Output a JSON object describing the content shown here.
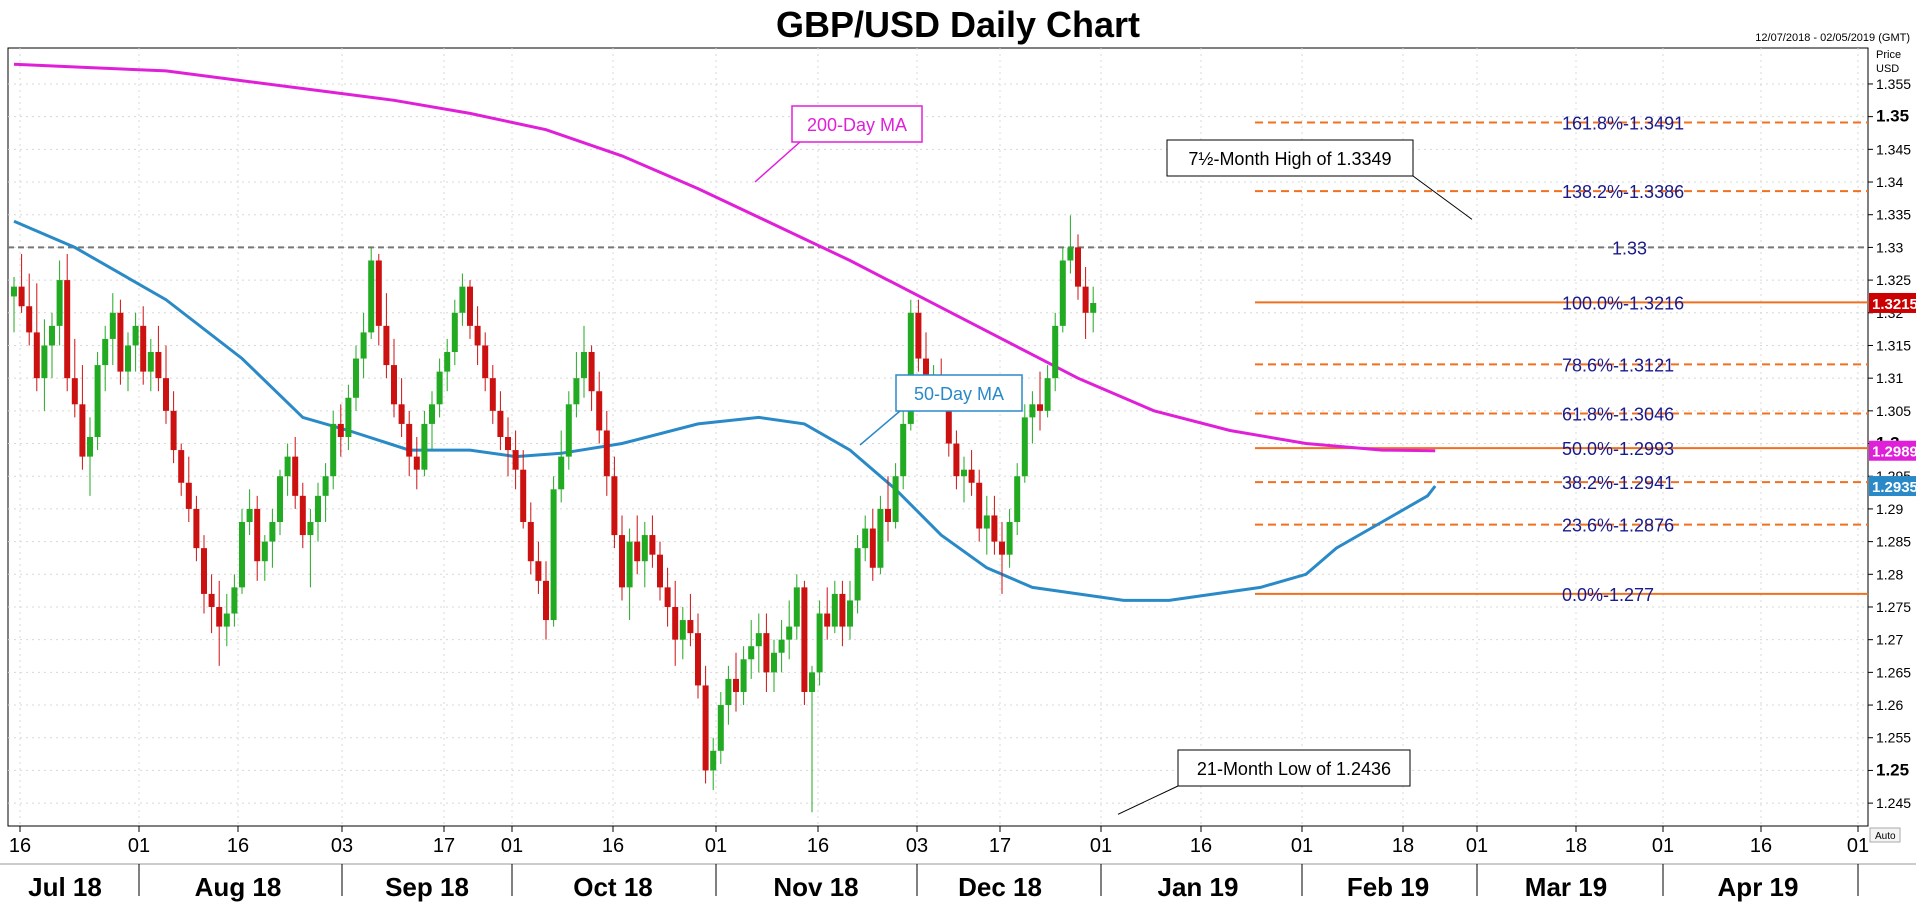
{
  "header": {
    "title": "GBP/USD Daily Chart",
    "date_range": "12/07/2018 - 02/05/2019 (GMT)",
    "axis_caption_1": "Price",
    "axis_caption_2": "USD",
    "auto_label": "Auto"
  },
  "colors": {
    "bull": "#22aa22",
    "bear": "#cc1111",
    "ma50": "#2a8ac8",
    "ma200": "#e020d8",
    "fib": "#f07020",
    "fib_text": "#1a1a8c",
    "dashed_level": "#777777",
    "price_box": "#cc0000"
  },
  "chart_data": {
    "type": "candlestick",
    "title": "GBP/USD Daily Chart",
    "ylim": [
      1.2415,
      1.3605
    ],
    "y_ticks": [
      {
        "value": 1.245,
        "label": "1.245",
        "bold": false
      },
      {
        "value": 1.25,
        "label": "1.25",
        "bold": true
      },
      {
        "value": 1.255,
        "label": "1.255",
        "bold": false
      },
      {
        "value": 1.26,
        "label": "1.26",
        "bold": false
      },
      {
        "value": 1.265,
        "label": "1.265",
        "bold": false
      },
      {
        "value": 1.27,
        "label": "1.27",
        "bold": false
      },
      {
        "value": 1.275,
        "label": "1.275",
        "bold": false
      },
      {
        "value": 1.28,
        "label": "1.28",
        "bold": false
      },
      {
        "value": 1.285,
        "label": "1.285",
        "bold": false
      },
      {
        "value": 1.29,
        "label": "1.29",
        "bold": false
      },
      {
        "value": 1.295,
        "label": "1.295",
        "bold": false
      },
      {
        "value": 1.3,
        "label": "1.3",
        "bold": true
      },
      {
        "value": 1.305,
        "label": "1.305",
        "bold": false
      },
      {
        "value": 1.31,
        "label": "1.31",
        "bold": false
      },
      {
        "value": 1.315,
        "label": "1.315",
        "bold": false
      },
      {
        "value": 1.32,
        "label": "1.32",
        "bold": false
      },
      {
        "value": 1.325,
        "label": "1.325",
        "bold": false
      },
      {
        "value": 1.33,
        "label": "1.33",
        "bold": false
      },
      {
        "value": 1.335,
        "label": "1.335",
        "bold": false
      },
      {
        "value": 1.34,
        "label": "1.34",
        "bold": false
      },
      {
        "value": 1.345,
        "label": "1.345",
        "bold": false
      },
      {
        "value": 1.35,
        "label": "1.35",
        "bold": true
      },
      {
        "value": 1.355,
        "label": "1.355",
        "bold": false
      }
    ],
    "x_day_ticks": [
      "16",
      "01",
      "16",
      "03",
      "17",
      "01",
      "16",
      "01",
      "16",
      "03",
      "17",
      "01",
      "16",
      "01",
      "18",
      "01",
      "18",
      "01",
      "16",
      "01"
    ],
    "x_month_labels": [
      "Jul 18",
      "Aug 18",
      "Sep 18",
      "Oct 18",
      "Nov 18",
      "Dec 18",
      "Jan 19",
      "Feb 19",
      "Mar 19",
      "Apr 19"
    ],
    "candles": [
      [
        1.3225,
        1.3255,
        1.317,
        1.324
      ],
      [
        1.324,
        1.329,
        1.32,
        1.321
      ],
      [
        1.321,
        1.326,
        1.315,
        1.317
      ],
      [
        1.317,
        1.3245,
        1.308,
        1.31
      ],
      [
        1.31,
        1.319,
        1.305,
        1.315
      ],
      [
        1.315,
        1.32,
        1.31,
        1.318
      ],
      [
        1.318,
        1.328,
        1.315,
        1.325
      ],
      [
        1.325,
        1.329,
        1.308,
        1.31
      ],
      [
        1.31,
        1.316,
        1.304,
        1.306
      ],
      [
        1.306,
        1.312,
        1.296,
        1.298
      ],
      [
        1.298,
        1.304,
        1.292,
        1.301
      ],
      [
        1.301,
        1.314,
        1.299,
        1.312
      ],
      [
        1.312,
        1.318,
        1.308,
        1.316
      ],
      [
        1.316,
        1.323,
        1.312,
        1.32
      ],
      [
        1.32,
        1.322,
        1.309,
        1.311
      ],
      [
        1.311,
        1.317,
        1.308,
        1.315
      ],
      [
        1.315,
        1.32,
        1.311,
        1.318
      ],
      [
        1.318,
        1.321,
        1.309,
        1.311
      ],
      [
        1.311,
        1.316,
        1.308,
        1.314
      ],
      [
        1.314,
        1.318,
        1.308,
        1.31
      ],
      [
        1.31,
        1.315,
        1.303,
        1.305
      ],
      [
        1.305,
        1.308,
        1.297,
        1.299
      ],
      [
        1.299,
        1.3,
        1.292,
        1.294
      ],
      [
        1.294,
        1.298,
        1.288,
        1.29
      ],
      [
        1.29,
        1.292,
        1.282,
        1.284
      ],
      [
        1.284,
        1.286,
        1.274,
        1.277
      ],
      [
        1.277,
        1.28,
        1.271,
        1.275
      ],
      [
        1.275,
        1.279,
        1.266,
        1.272
      ],
      [
        1.272,
        1.277,
        1.269,
        1.274
      ],
      [
        1.274,
        1.28,
        1.272,
        1.278
      ],
      [
        1.278,
        1.29,
        1.277,
        1.288
      ],
      [
        1.288,
        1.293,
        1.286,
        1.29
      ],
      [
        1.29,
        1.292,
        1.279,
        1.282
      ],
      [
        1.282,
        1.286,
        1.279,
        1.285
      ],
      [
        1.285,
        1.29,
        1.281,
        1.288
      ],
      [
        1.288,
        1.296,
        1.286,
        1.295
      ],
      [
        1.295,
        1.3,
        1.292,
        1.298
      ],
      [
        1.298,
        1.301,
        1.29,
        1.292
      ],
      [
        1.292,
        1.294,
        1.284,
        1.286
      ],
      [
        1.286,
        1.29,
        1.278,
        1.288
      ],
      [
        1.288,
        1.294,
        1.285,
        1.292
      ],
      [
        1.292,
        1.297,
        1.288,
        1.295
      ],
      [
        1.295,
        1.305,
        1.293,
        1.303
      ],
      [
        1.303,
        1.306,
        1.298,
        1.301
      ],
      [
        1.301,
        1.309,
        1.299,
        1.307
      ],
      [
        1.307,
        1.315,
        1.305,
        1.313
      ],
      [
        1.313,
        1.32,
        1.31,
        1.317
      ],
      [
        1.317,
        1.33,
        1.316,
        1.328
      ],
      [
        1.328,
        1.329,
        1.315,
        1.318
      ],
      [
        1.318,
        1.323,
        1.31,
        1.312
      ],
      [
        1.312,
        1.316,
        1.304,
        1.306
      ],
      [
        1.306,
        1.31,
        1.301,
        1.303
      ],
      [
        1.303,
        1.305,
        1.295,
        1.298
      ],
      [
        1.298,
        1.301,
        1.293,
        1.296
      ],
      [
        1.296,
        1.305,
        1.295,
        1.303
      ],
      [
        1.303,
        1.308,
        1.299,
        1.306
      ],
      [
        1.306,
        1.313,
        1.304,
        1.311
      ],
      [
        1.311,
        1.316,
        1.308,
        1.314
      ],
      [
        1.314,
        1.322,
        1.312,
        1.32
      ],
      [
        1.32,
        1.326,
        1.318,
        1.324
      ],
      [
        1.324,
        1.325,
        1.316,
        1.318
      ],
      [
        1.318,
        1.321,
        1.312,
        1.315
      ],
      [
        1.315,
        1.317,
        1.308,
        1.31
      ],
      [
        1.31,
        1.312,
        1.303,
        1.305
      ],
      [
        1.305,
        1.308,
        1.299,
        1.301
      ],
      [
        1.301,
        1.304,
        1.295,
        1.299
      ],
      [
        1.299,
        1.302,
        1.293,
        1.296
      ],
      [
        1.296,
        1.299,
        1.287,
        1.288
      ],
      [
        1.288,
        1.291,
        1.28,
        1.282
      ],
      [
        1.282,
        1.285,
        1.277,
        1.279
      ],
      [
        1.279,
        1.282,
        1.27,
        1.273
      ],
      [
        1.273,
        1.295,
        1.272,
        1.293
      ],
      [
        1.293,
        1.302,
        1.291,
        1.298
      ],
      [
        1.298,
        1.308,
        1.296,
        1.306
      ],
      [
        1.306,
        1.314,
        1.304,
        1.31
      ],
      [
        1.31,
        1.318,
        1.307,
        1.314
      ],
      [
        1.314,
        1.315,
        1.305,
        1.308
      ],
      [
        1.308,
        1.311,
        1.3,
        1.302
      ],
      [
        1.302,
        1.305,
        1.292,
        1.295
      ],
      [
        1.295,
        1.298,
        1.284,
        1.286
      ],
      [
        1.286,
        1.289,
        1.276,
        1.278
      ],
      [
        1.278,
        1.287,
        1.273,
        1.285
      ],
      [
        1.285,
        1.289,
        1.28,
        1.282
      ],
      [
        1.282,
        1.288,
        1.278,
        1.286
      ],
      [
        1.286,
        1.289,
        1.281,
        1.283
      ],
      [
        1.283,
        1.285,
        1.276,
        1.278
      ],
      [
        1.278,
        1.281,
        1.272,
        1.275
      ],
      [
        1.275,
        1.279,
        1.266,
        1.27
      ],
      [
        1.27,
        1.275,
        1.267,
        1.273
      ],
      [
        1.273,
        1.277,
        1.269,
        1.271
      ],
      [
        1.271,
        1.274,
        1.261,
        1.263
      ],
      [
        1.263,
        1.266,
        1.248,
        1.25
      ],
      [
        1.25,
        1.255,
        1.247,
        1.253
      ],
      [
        1.253,
        1.262,
        1.251,
        1.26
      ],
      [
        1.26,
        1.266,
        1.257,
        1.264
      ],
      [
        1.264,
        1.268,
        1.259,
        1.262
      ],
      [
        1.262,
        1.269,
        1.26,
        1.267
      ],
      [
        1.267,
        1.273,
        1.264,
        1.269
      ],
      [
        1.269,
        1.274,
        1.265,
        1.271
      ],
      [
        1.271,
        1.274,
        1.262,
        1.265
      ],
      [
        1.265,
        1.27,
        1.262,
        1.268
      ],
      [
        1.268,
        1.273,
        1.265,
        1.27
      ],
      [
        1.27,
        1.276,
        1.267,
        1.272
      ],
      [
        1.272,
        1.28,
        1.27,
        1.278
      ],
      [
        1.278,
        1.279,
        1.26,
        1.262
      ],
      [
        1.262,
        1.266,
        1.2436,
        1.265
      ],
      [
        1.265,
        1.276,
        1.263,
        1.274
      ],
      [
        1.274,
        1.278,
        1.27,
        1.272
      ],
      [
        1.272,
        1.279,
        1.271,
        1.277
      ],
      [
        1.277,
        1.279,
        1.269,
        1.272
      ],
      [
        1.272,
        1.279,
        1.27,
        1.276
      ],
      [
        1.276,
        1.286,
        1.274,
        1.284
      ],
      [
        1.284,
        1.289,
        1.282,
        1.287
      ],
      [
        1.287,
        1.29,
        1.279,
        1.281
      ],
      [
        1.281,
        1.292,
        1.28,
        1.29
      ],
      [
        1.29,
        1.295,
        1.285,
        1.288
      ],
      [
        1.288,
        1.297,
        1.287,
        1.295
      ],
      [
        1.295,
        1.305,
        1.293,
        1.303
      ],
      [
        1.303,
        1.322,
        1.302,
        1.32
      ],
      [
        1.32,
        1.322,
        1.311,
        1.313
      ],
      [
        1.313,
        1.317,
        1.307,
        1.309
      ],
      [
        1.309,
        1.312,
        1.305,
        1.31
      ],
      [
        1.31,
        1.313,
        1.305,
        1.307
      ],
      [
        1.307,
        1.309,
        1.298,
        1.3
      ],
      [
        1.3,
        1.302,
        1.293,
        1.295
      ],
      [
        1.295,
        1.298,
        1.291,
        1.296
      ],
      [
        1.296,
        1.299,
        1.292,
        1.294
      ],
      [
        1.294,
        1.296,
        1.285,
        1.287
      ],
      [
        1.287,
        1.292,
        1.283,
        1.289
      ],
      [
        1.289,
        1.292,
        1.283,
        1.285
      ],
      [
        1.285,
        1.288,
        1.277,
        1.283
      ],
      [
        1.283,
        1.29,
        1.281,
        1.288
      ],
      [
        1.288,
        1.297,
        1.286,
        1.295
      ],
      [
        1.295,
        1.306,
        1.294,
        1.304
      ],
      [
        1.304,
        1.308,
        1.3,
        1.306
      ],
      [
        1.306,
        1.311,
        1.302,
        1.305
      ],
      [
        1.305,
        1.312,
        1.304,
        1.31
      ],
      [
        1.31,
        1.32,
        1.308,
        1.318
      ],
      [
        1.318,
        1.33,
        1.317,
        1.328
      ],
      [
        1.328,
        1.3349,
        1.326,
        1.33
      ],
      [
        1.33,
        1.332,
        1.322,
        1.324
      ],
      [
        1.324,
        1.327,
        1.316,
        1.32
      ],
      [
        1.32,
        1.324,
        1.317,
        1.3215
      ]
    ],
    "ma50": [
      [
        0,
        1.334
      ],
      [
        8,
        1.33
      ],
      [
        20,
        1.322
      ],
      [
        30,
        1.313
      ],
      [
        38,
        1.304
      ],
      [
        44,
        1.302
      ],
      [
        52,
        1.299
      ],
      [
        60,
        1.299
      ],
      [
        66,
        1.298
      ],
      [
        72,
        1.2985
      ],
      [
        80,
        1.3
      ],
      [
        90,
        1.303
      ],
      [
        98,
        1.304
      ],
      [
        104,
        1.303
      ],
      [
        110,
        1.299
      ],
      [
        116,
        1.293
      ],
      [
        122,
        1.286
      ],
      [
        128,
        1.281
      ],
      [
        134,
        1.278
      ],
      [
        140,
        1.277
      ],
      [
        146,
        1.276
      ],
      [
        152,
        1.276
      ],
      [
        158,
        1.277
      ],
      [
        164,
        1.278
      ],
      [
        170,
        1.28
      ],
      [
        174,
        1.284
      ],
      [
        180,
        1.288
      ],
      [
        186,
        1.292
      ],
      [
        187,
        1.2935
      ]
    ],
    "ma200": [
      [
        0,
        1.358
      ],
      [
        10,
        1.3575
      ],
      [
        20,
        1.357
      ],
      [
        30,
        1.3555
      ],
      [
        40,
        1.354
      ],
      [
        50,
        1.3525
      ],
      [
        60,
        1.3505
      ],
      [
        70,
        1.348
      ],
      [
        80,
        1.344
      ],
      [
        90,
        1.339
      ],
      [
        100,
        1.3335
      ],
      [
        110,
        1.328
      ],
      [
        120,
        1.322
      ],
      [
        130,
        1.316
      ],
      [
        140,
        1.31
      ],
      [
        150,
        1.305
      ],
      [
        160,
        1.302
      ],
      [
        170,
        1.3
      ],
      [
        180,
        1.299
      ],
      [
        187,
        1.2989
      ]
    ],
    "levels": {
      "dashed_1_33": {
        "value": 1.33,
        "label": "1.33"
      },
      "fib": [
        {
          "value": 1.3491,
          "label": "161.8%-1.3491",
          "style": "dashed"
        },
        {
          "value": 1.3386,
          "label": "138.2%-1.3386",
          "style": "dashed"
        },
        {
          "value": 1.3216,
          "label": "100.0%-1.3216",
          "style": "solid"
        },
        {
          "value": 1.3121,
          "label": "78.6%-1.3121",
          "style": "dashed"
        },
        {
          "value": 1.3046,
          "label": "61.8%-1.3046",
          "style": "dashed"
        },
        {
          "value": 1.2993,
          "label": "50.0%-1.2993",
          "style": "solid"
        },
        {
          "value": 1.2941,
          "label": "38.2%-1.2941",
          "style": "dashed"
        },
        {
          "value": 1.2876,
          "label": "23.6%-1.2876",
          "style": "dashed"
        },
        {
          "value": 1.277,
          "label": "0.0%-1.277",
          "style": "solid"
        }
      ]
    },
    "price_boxes": [
      {
        "value": 1.3215,
        "label": "1.3215",
        "color": "#cc0000"
      },
      {
        "value": 1.2989,
        "label": "1.2989",
        "color": "#e020d8"
      },
      {
        "value": 1.2935,
        "label": "1.2935",
        "color": "#2a8ac8"
      }
    ],
    "annotations": {
      "ma200": "200-Day MA",
      "ma50": "50-Day MA",
      "high": "7½-Month High of 1.3349",
      "low": "21-Month Low of 1.2436"
    }
  }
}
